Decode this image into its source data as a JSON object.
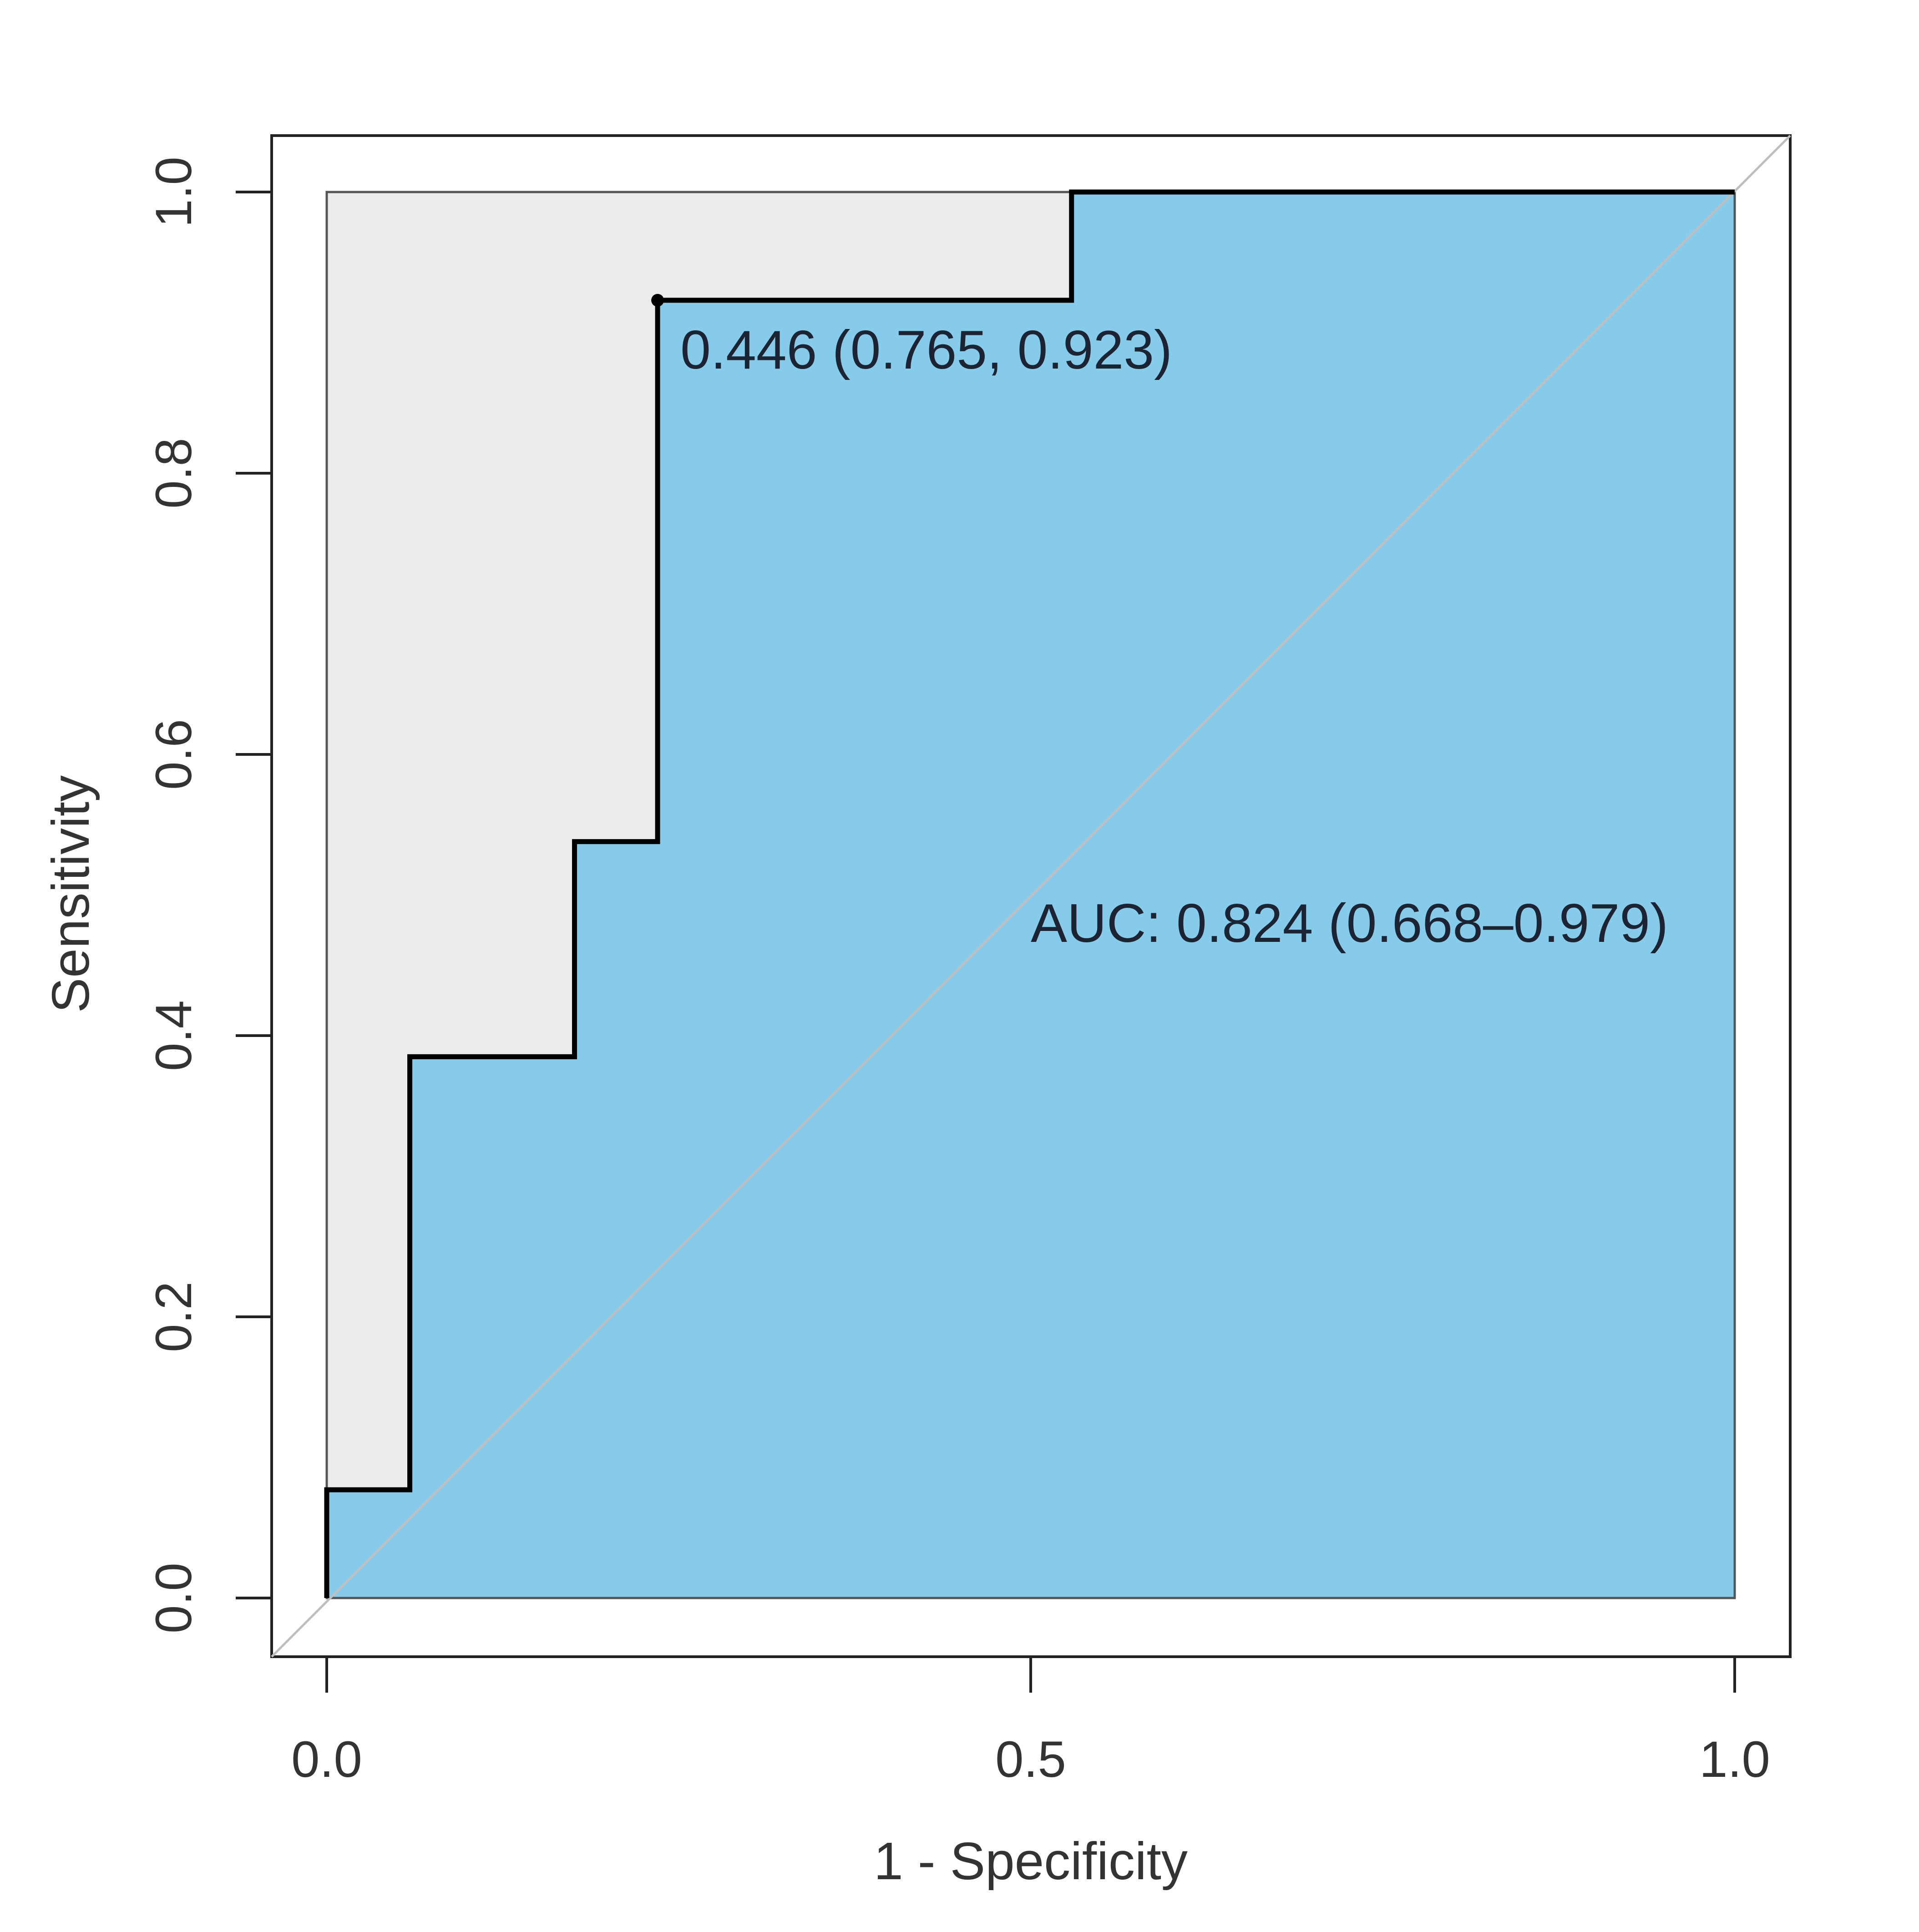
{
  "chart_data": {
    "type": "line",
    "xlabel": "1 - Specificity",
    "ylabel": "Sensitivity",
    "xlim": [
      0.0,
      1.0
    ],
    "ylim": [
      0.0,
      1.0
    ],
    "x_ticks": [
      "0.0",
      "0.5",
      "1.0"
    ],
    "x_tick_values": [
      0.0,
      0.5,
      1.0
    ],
    "y_ticks": [
      "0.0",
      "0.2",
      "0.4",
      "0.6",
      "0.8",
      "1.0"
    ],
    "y_tick_values": [
      0.0,
      0.2,
      0.4,
      0.6,
      0.8,
      1.0
    ],
    "grid": false,
    "fill_color": "#87CBEA",
    "background_fill_color": "#EDEBEB",
    "line_color": "#000000",
    "series": [
      {
        "x": [
          0.0,
          0.0,
          0.059,
          0.059,
          0.176,
          0.176,
          0.235,
          0.235,
          0.529,
          0.529,
          1.0,
          1.0
        ],
        "y": [
          0.0,
          0.077,
          0.077,
          0.385,
          0.385,
          0.538,
          0.538,
          0.923,
          0.923,
          1.0,
          1.0,
          0.0
        ]
      }
    ],
    "diagonal_reference": true,
    "best_threshold": {
      "x": 0.235,
      "y": 0.923,
      "label": "0.446 (0.765, 0.923)"
    },
    "auc_label": "AUC: 0.824 (0.668–0.979)"
  }
}
